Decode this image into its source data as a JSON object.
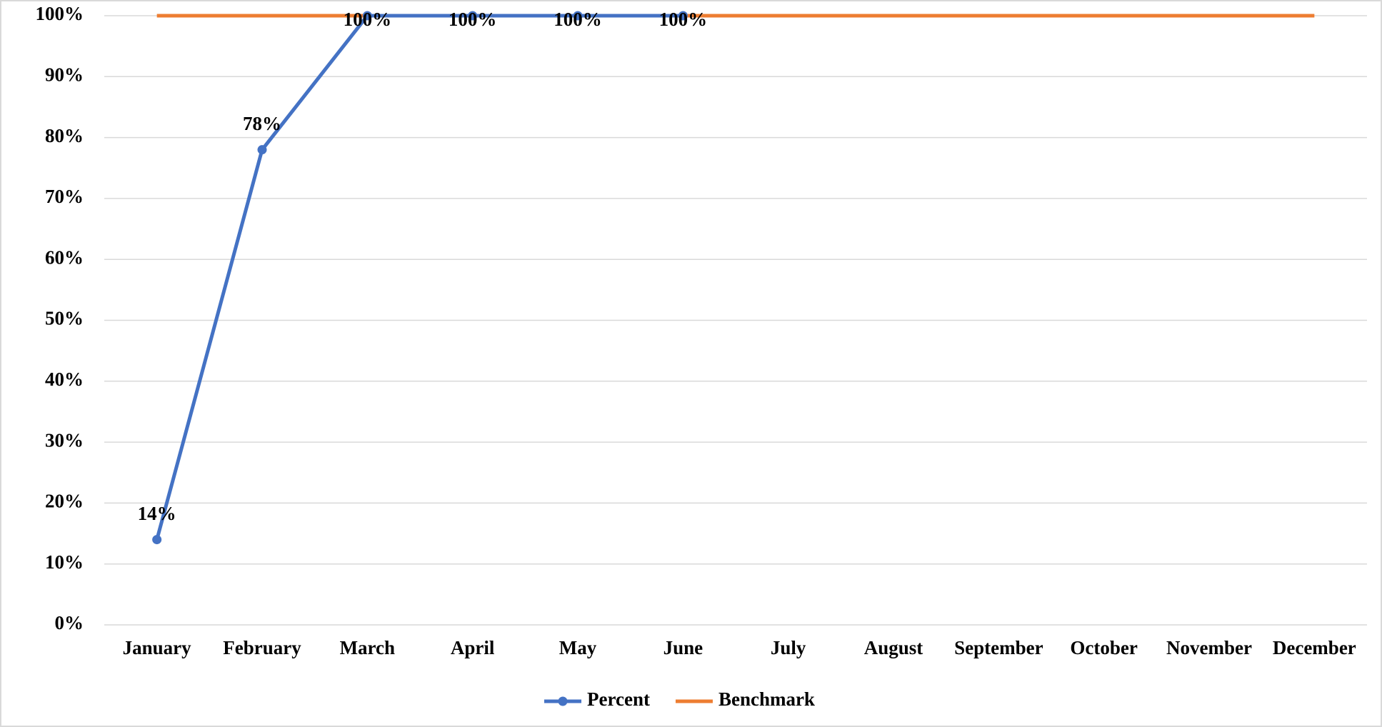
{
  "chart_data": {
    "type": "line",
    "categories": [
      "January",
      "February",
      "March",
      "April",
      "May",
      "June",
      "July",
      "August",
      "September",
      "October",
      "November",
      "December"
    ],
    "series": [
      {
        "name": "Percent",
        "color": "#4472c4",
        "marker": true,
        "values": [
          14,
          78,
          100,
          100,
          100,
          100,
          null,
          null,
          null,
          null,
          null,
          null
        ],
        "value_labels": [
          "14%",
          "78%",
          "100%",
          "100%",
          "100%",
          "100%",
          null,
          null,
          null,
          null,
          null,
          null
        ]
      },
      {
        "name": "Benchmark",
        "color": "#ed7d31",
        "marker": false,
        "values": [
          100,
          100,
          100,
          100,
          100,
          100,
          100,
          100,
          100,
          100,
          100,
          100
        ]
      }
    ],
    "ylim": [
      0,
      100
    ],
    "yticks": [
      {
        "value": 0,
        "label": "0%"
      },
      {
        "value": 10,
        "label": "10%"
      },
      {
        "value": 20,
        "label": "20%"
      },
      {
        "value": 30,
        "label": "30%"
      },
      {
        "value": 40,
        "label": "40%"
      },
      {
        "value": 50,
        "label": "50%"
      },
      {
        "value": 60,
        "label": "60%"
      },
      {
        "value": 70,
        "label": "70%"
      },
      {
        "value": 80,
        "label": "80%"
      },
      {
        "value": 90,
        "label": "90%"
      },
      {
        "value": 100,
        "label": "100%"
      }
    ],
    "grid": true,
    "legend": "bottom"
  }
}
